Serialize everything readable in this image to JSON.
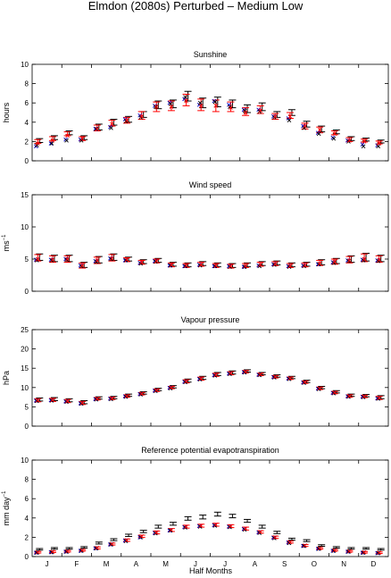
{
  "title": "Elmdon (2080s) Perturbed – Medium Low",
  "colors": {
    "control": "#000000",
    "observed": "#0000cc",
    "perturbed": "#ff0000",
    "axis": "#000000"
  },
  "shared_x": {
    "xlabel": "Half Months",
    "month_labels": [
      "J",
      "F",
      "M",
      "A",
      "M",
      "J",
      "J",
      "A",
      "S",
      "O",
      "N",
      "D"
    ],
    "half_months": 24
  },
  "chart_data": [
    {
      "type": "scatter",
      "title": "Sunshine",
      "ylabel": "hours",
      "ylabel_superscript": "",
      "ylim": [
        0,
        10
      ],
      "yticks": [
        0,
        2,
        4,
        6,
        8,
        10
      ],
      "x": [
        1,
        2,
        3,
        4,
        5,
        6,
        7,
        8,
        9,
        10,
        11,
        12,
        13,
        14,
        15,
        16,
        17,
        18,
        19,
        20,
        21,
        22,
        23,
        24
      ],
      "series": [
        {
          "style": "black-errorbar",
          "values": [
            2.1,
            2.4,
            2.9,
            2.4,
            3.5,
            4.0,
            4.3,
            4.8,
            5.8,
            5.9,
            6.7,
            6.0,
            6.1,
            5.9,
            5.4,
            5.6,
            4.8,
            5.0,
            3.8,
            3.3,
            3.0,
            2.3,
            2.2,
            2.0
          ],
          "err": [
            0.2,
            0.2,
            0.2,
            0.2,
            0.3,
            0.3,
            0.3,
            0.3,
            0.4,
            0.4,
            0.5,
            0.5,
            0.5,
            0.4,
            0.4,
            0.4,
            0.3,
            0.3,
            0.3,
            0.3,
            0.2,
            0.2,
            0.15,
            0.15
          ]
        },
        {
          "style": "red-errorbar",
          "values": [
            2.0,
            2.3,
            2.8,
            2.3,
            3.4,
            3.9,
            4.2,
            4.7,
            5.6,
            5.7,
            6.3,
            5.8,
            5.7,
            5.6,
            5.1,
            5.3,
            4.6,
            4.7,
            3.6,
            3.2,
            2.9,
            2.2,
            2.1,
            1.9
          ],
          "err": [
            0.2,
            0.2,
            0.2,
            0.2,
            0.3,
            0.3,
            0.3,
            0.4,
            0.5,
            0.5,
            0.6,
            0.6,
            0.6,
            0.5,
            0.4,
            0.4,
            0.3,
            0.3,
            0.3,
            0.3,
            0.2,
            0.2,
            0.15,
            0.15
          ]
        },
        {
          "style": "blue-cross",
          "values": [
            1.5,
            1.8,
            2.2,
            2.2,
            3.3,
            3.5,
            4.3,
            4.7,
            5.7,
            6.0,
            6.4,
            5.8,
            6.2,
            5.8,
            5.3,
            5.3,
            4.6,
            4.4,
            3.6,
            2.9,
            2.4,
            2.1,
            1.7,
            1.6
          ]
        },
        {
          "style": "black-cross",
          "values": [
            1.6,
            1.8,
            2.1,
            2.1,
            3.3,
            3.4,
            4.1,
            4.5,
            5.6,
            5.9,
            6.6,
            6.0,
            6.1,
            5.6,
            5.2,
            5.1,
            4.5,
            4.2,
            3.4,
            2.8,
            2.3,
            2.0,
            1.5,
            1.5
          ]
        },
        {
          "style": "red-cross",
          "values": [
            1.8,
            2.1,
            2.6,
            2.3,
            3.3,
            3.8,
            4.2,
            4.6,
            5.6,
            5.6,
            6.2,
            5.7,
            5.7,
            5.5,
            5.0,
            5.2,
            4.6,
            4.6,
            3.6,
            3.2,
            2.8,
            2.1,
            2.0,
            1.8
          ]
        }
      ]
    },
    {
      "type": "scatter",
      "title": "Wind speed",
      "ylabel": "ms",
      "ylabel_superscript": "−1",
      "ylim": [
        0,
        15
      ],
      "yticks": [
        0,
        5,
        10,
        15
      ],
      "x": [
        1,
        2,
        3,
        4,
        5,
        6,
        7,
        8,
        9,
        10,
        11,
        12,
        13,
        14,
        15,
        16,
        17,
        18,
        19,
        20,
        21,
        22,
        23,
        24
      ],
      "series": [
        {
          "style": "black-errorbar",
          "values": [
            5.3,
            5.1,
            5.1,
            4.1,
            4.9,
            5.3,
            5.0,
            4.6,
            4.8,
            4.2,
            4.1,
            4.3,
            4.1,
            4.0,
            4.1,
            4.3,
            4.4,
            4.1,
            4.2,
            4.5,
            4.7,
            5.0,
            5.3,
            5.1
          ],
          "err": [
            0.5,
            0.5,
            0.5,
            0.4,
            0.5,
            0.5,
            0.3,
            0.3,
            0.3,
            0.3,
            0.3,
            0.3,
            0.3,
            0.3,
            0.3,
            0.3,
            0.3,
            0.3,
            0.3,
            0.4,
            0.4,
            0.5,
            0.6,
            0.5
          ]
        },
        {
          "style": "red-errorbar",
          "values": [
            5.2,
            5.0,
            5.0,
            4.0,
            4.8,
            5.2,
            4.9,
            4.5,
            4.7,
            4.1,
            4.0,
            4.2,
            4.0,
            3.9,
            4.0,
            4.2,
            4.3,
            4.0,
            4.1,
            4.4,
            4.6,
            4.9,
            5.2,
            5.0
          ],
          "err": [
            0.5,
            0.5,
            0.5,
            0.4,
            0.5,
            0.5,
            0.3,
            0.3,
            0.3,
            0.3,
            0.3,
            0.3,
            0.3,
            0.3,
            0.3,
            0.3,
            0.3,
            0.3,
            0.3,
            0.4,
            0.4,
            0.5,
            0.6,
            0.5
          ]
        },
        {
          "style": "blue-cross",
          "values": [
            4.9,
            4.9,
            5.0,
            4.0,
            4.7,
            5.1,
            4.8,
            4.4,
            4.7,
            4.0,
            3.9,
            4.1,
            3.9,
            3.9,
            3.8,
            4.0,
            4.2,
            3.9,
            4.0,
            4.2,
            4.5,
            4.8,
            4.9,
            4.8
          ]
        },
        {
          "style": "black-cross",
          "values": [
            4.8,
            4.8,
            4.9,
            3.9,
            4.6,
            5.0,
            4.8,
            4.3,
            4.6,
            4.0,
            3.9,
            4.0,
            3.9,
            3.8,
            3.8,
            3.9,
            4.1,
            3.8,
            3.9,
            4.2,
            4.4,
            4.7,
            4.8,
            4.7
          ]
        },
        {
          "style": "red-cross",
          "values": [
            5.0,
            4.9,
            5.0,
            4.0,
            4.8,
            5.1,
            4.9,
            4.5,
            4.7,
            4.1,
            4.0,
            4.1,
            4.0,
            3.9,
            3.9,
            4.1,
            4.2,
            3.9,
            4.0,
            4.3,
            4.6,
            4.8,
            5.0,
            4.9
          ]
        }
      ]
    },
    {
      "type": "scatter",
      "title": "Vapour pressure",
      "ylabel": "hPa",
      "ylabel_superscript": "",
      "ylim": [
        0,
        25
      ],
      "yticks": [
        0,
        5,
        10,
        15,
        20,
        25
      ],
      "x": [
        1,
        2,
        3,
        4,
        5,
        6,
        7,
        8,
        9,
        10,
        11,
        12,
        13,
        14,
        15,
        16,
        17,
        18,
        19,
        20,
        21,
        22,
        23,
        24
      ],
      "series": [
        {
          "style": "black-errorbar",
          "values": [
            6.9,
            7.0,
            6.7,
            6.2,
            7.3,
            7.4,
            8.0,
            8.6,
            9.5,
            10.2,
            11.8,
            12.5,
            13.5,
            13.9,
            14.3,
            13.6,
            13.0,
            12.6,
            11.6,
            10.0,
            8.9,
            8.0,
            7.9,
            7.5
          ],
          "err": [
            0.4,
            0.4,
            0.4,
            0.4,
            0.3,
            0.3,
            0.3,
            0.3,
            0.3,
            0.3,
            0.4,
            0.4,
            0.4,
            0.4,
            0.3,
            0.3,
            0.3,
            0.3,
            0.3,
            0.3,
            0.3,
            0.3,
            0.3,
            0.4
          ]
        },
        {
          "style": "red-errorbar",
          "values": [
            6.7,
            6.8,
            6.5,
            6.0,
            7.1,
            7.2,
            7.8,
            8.4,
            9.3,
            10.0,
            11.6,
            12.3,
            13.3,
            13.7,
            14.1,
            13.4,
            12.8,
            12.4,
            11.4,
            9.8,
            8.7,
            7.8,
            7.7,
            7.3
          ],
          "err": [
            0.4,
            0.4,
            0.4,
            0.4,
            0.3,
            0.3,
            0.3,
            0.3,
            0.3,
            0.3,
            0.4,
            0.4,
            0.4,
            0.4,
            0.3,
            0.3,
            0.3,
            0.3,
            0.3,
            0.3,
            0.3,
            0.3,
            0.3,
            0.4
          ]
        },
        {
          "style": "blue-cross",
          "values": [
            6.6,
            6.7,
            6.4,
            5.9,
            7.0,
            7.1,
            7.7,
            8.3,
            9.2,
            9.9,
            11.5,
            12.2,
            13.2,
            13.6,
            14.0,
            13.3,
            12.7,
            12.3,
            11.3,
            9.7,
            8.6,
            7.7,
            7.6,
            7.2
          ]
        },
        {
          "style": "black-cross",
          "values": [
            6.5,
            6.6,
            6.3,
            5.8,
            6.9,
            7.0,
            7.6,
            8.2,
            9.1,
            9.8,
            11.4,
            12.1,
            13.1,
            13.5,
            13.9,
            13.2,
            12.6,
            12.2,
            11.2,
            9.6,
            8.5,
            7.6,
            7.5,
            7.1
          ]
        },
        {
          "style": "red-cross",
          "values": [
            6.7,
            6.8,
            6.5,
            6.0,
            7.1,
            7.2,
            7.8,
            8.4,
            9.3,
            10.0,
            11.6,
            12.3,
            13.3,
            13.7,
            14.1,
            13.4,
            12.8,
            12.4,
            11.4,
            9.8,
            8.7,
            7.8,
            7.7,
            7.3
          ]
        }
      ]
    },
    {
      "type": "scatter",
      "title": "Reference potential evapotranspiration",
      "ylabel": "mm day",
      "ylabel_superscript": "−1",
      "ylim": [
        0,
        10
      ],
      "yticks": [
        0,
        2,
        4,
        6,
        8,
        10
      ],
      "x": [
        1,
        2,
        3,
        4,
        5,
        6,
        7,
        8,
        9,
        10,
        11,
        12,
        13,
        14,
        15,
        16,
        17,
        18,
        19,
        20,
        21,
        22,
        23,
        24
      ],
      "series": [
        {
          "style": "black-errorbar",
          "values": [
            0.75,
            0.85,
            0.85,
            0.95,
            1.4,
            1.75,
            2.2,
            2.6,
            3.1,
            3.4,
            3.95,
            4.1,
            4.4,
            4.2,
            3.7,
            3.1,
            2.5,
            1.8,
            1.65,
            1.15,
            0.95,
            0.85,
            0.85,
            0.75
          ],
          "err": [
            0.08,
            0.08,
            0.08,
            0.08,
            0.1,
            0.1,
            0.12,
            0.12,
            0.15,
            0.15,
            0.18,
            0.2,
            0.2,
            0.18,
            0.15,
            0.15,
            0.12,
            0.1,
            0.1,
            0.08,
            0.08,
            0.08,
            0.08,
            0.08
          ]
        },
        {
          "style": "red-errorbar",
          "values": [
            0.45,
            0.5,
            0.55,
            0.65,
            0.9,
            1.3,
            1.7,
            2.1,
            2.5,
            2.75,
            3.1,
            3.2,
            3.3,
            3.15,
            2.9,
            2.55,
            2.0,
            1.5,
            1.15,
            0.85,
            0.65,
            0.55,
            0.45,
            0.4
          ],
          "err": [
            0.08,
            0.08,
            0.08,
            0.08,
            0.1,
            0.1,
            0.12,
            0.12,
            0.15,
            0.15,
            0.15,
            0.15,
            0.15,
            0.15,
            0.15,
            0.12,
            0.12,
            0.1,
            0.1,
            0.08,
            0.08,
            0.08,
            0.08,
            0.08
          ]
        },
        {
          "style": "blue-cross",
          "values": [
            0.4,
            0.45,
            0.5,
            0.6,
            0.85,
            1.25,
            1.65,
            2.0,
            2.45,
            2.7,
            3.05,
            3.15,
            3.25,
            3.1,
            2.85,
            2.5,
            1.95,
            1.45,
            1.1,
            0.8,
            0.6,
            0.5,
            0.4,
            0.35
          ]
        },
        {
          "style": "black-cross",
          "values": [
            0.4,
            0.45,
            0.5,
            0.6,
            0.85,
            1.25,
            1.6,
            2.0,
            2.4,
            2.7,
            3.0,
            3.1,
            3.2,
            3.05,
            2.8,
            2.45,
            1.9,
            1.4,
            1.1,
            0.8,
            0.6,
            0.5,
            0.4,
            0.35
          ]
        },
        {
          "style": "red-cross",
          "values": [
            0.45,
            0.5,
            0.55,
            0.65,
            0.9,
            1.3,
            1.7,
            2.1,
            2.5,
            2.75,
            3.1,
            3.2,
            3.3,
            3.15,
            2.9,
            2.55,
            2.0,
            1.5,
            1.15,
            0.85,
            0.65,
            0.55,
            0.45,
            0.4
          ]
        }
      ]
    }
  ]
}
